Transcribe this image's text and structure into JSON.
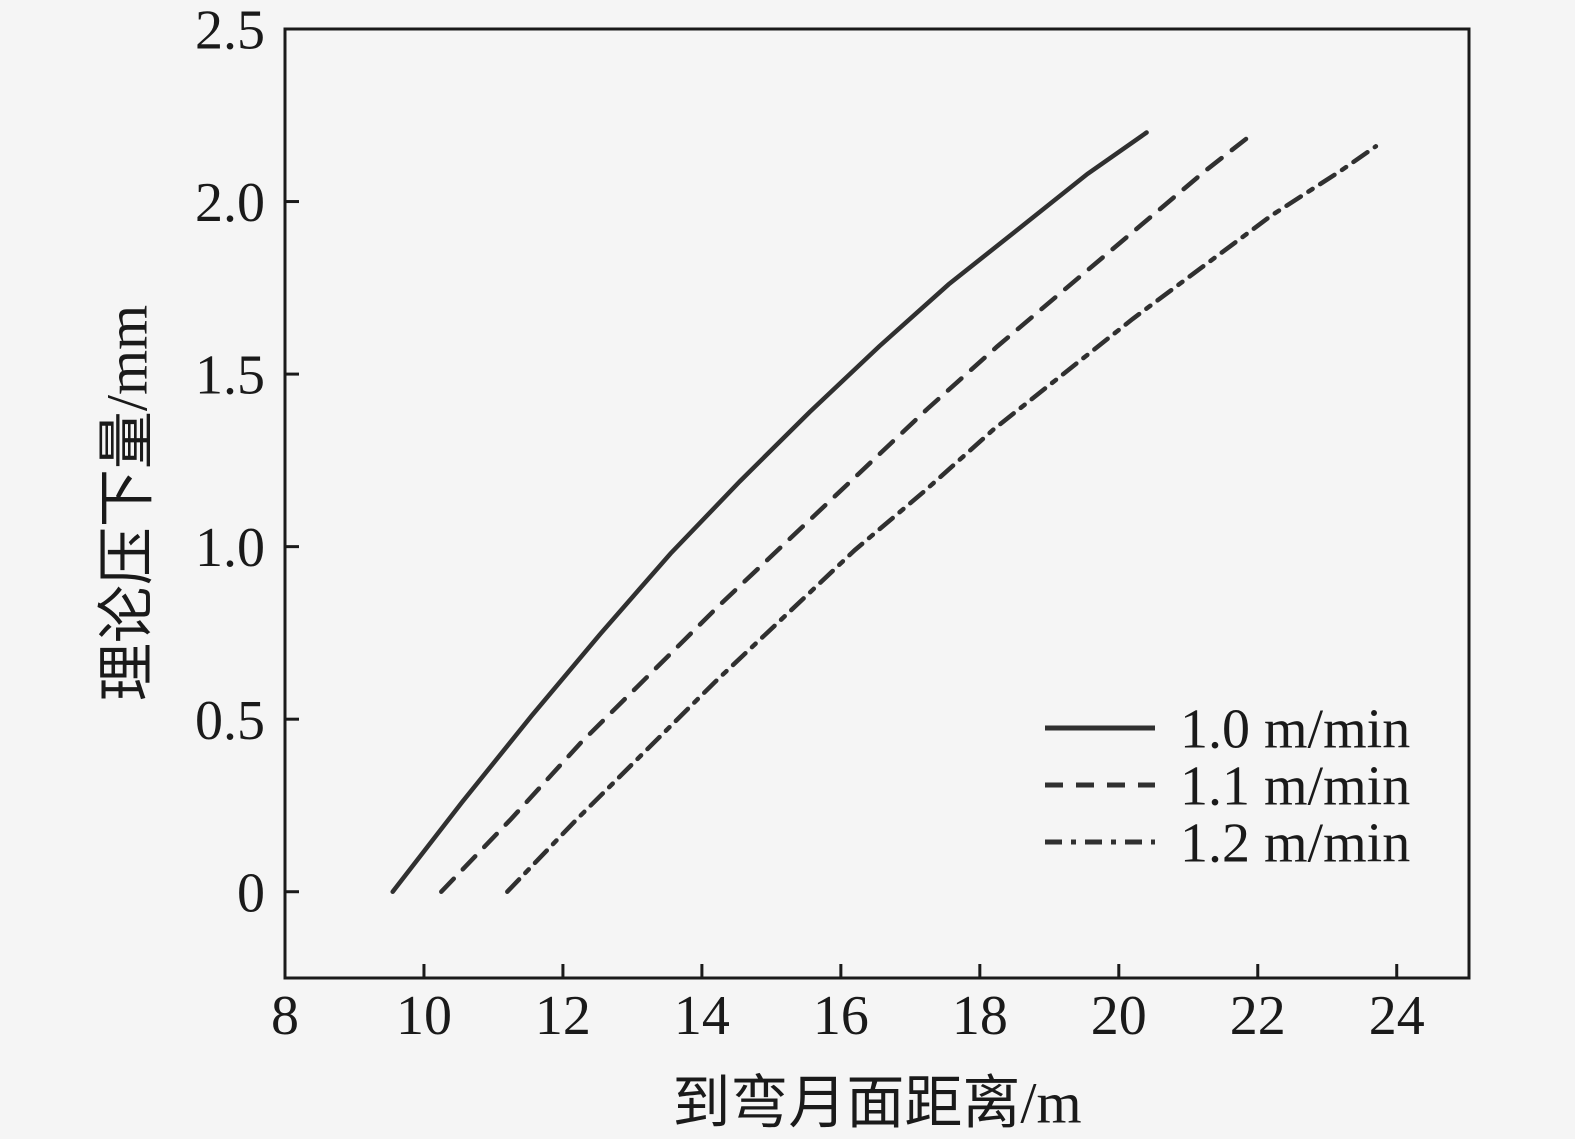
{
  "figure": {
    "colors": {
      "background": "#f5f5f5",
      "border": "#1a1a1a",
      "text": "#1a1a1a",
      "line": "#303030"
    }
  },
  "chart_data": {
    "type": "line",
    "title": "",
    "xlabel": "到弯月面距离/m",
    "ylabel": "理论压下量/mm",
    "xlim": [
      8,
      25.04
    ],
    "ylim": [
      -0.25,
      2.5
    ],
    "grid": false,
    "legend_position": "lower right",
    "xticks": [
      {
        "value": 8,
        "label": "8"
      },
      {
        "value": 10,
        "label": "10"
      },
      {
        "value": 12,
        "label": "12"
      },
      {
        "value": 14,
        "label": "14"
      },
      {
        "value": 16,
        "label": "16"
      },
      {
        "value": 18,
        "label": "18"
      },
      {
        "value": 20,
        "label": "20"
      },
      {
        "value": 22,
        "label": "22"
      },
      {
        "value": 24,
        "label": "24"
      }
    ],
    "yticks": [
      {
        "value": 0,
        "label": "0"
      },
      {
        "value": 0.5,
        "label": "0.5"
      },
      {
        "value": 1.0,
        "label": "1.0"
      },
      {
        "value": 1.5,
        "label": "1.5"
      },
      {
        "value": 2.0,
        "label": "2.0"
      },
      {
        "value": 2.5,
        "label": "2.5"
      }
    ],
    "series": [
      {
        "name": "1.0 m/min",
        "style": "solid",
        "points": [
          [
            9.55,
            0
          ],
          [
            10.55,
            0.26
          ],
          [
            11.55,
            0.51
          ],
          [
            12.55,
            0.75
          ],
          [
            13.55,
            0.98
          ],
          [
            14.55,
            1.19
          ],
          [
            15.55,
            1.39
          ],
          [
            16.55,
            1.58
          ],
          [
            17.55,
            1.76
          ],
          [
            18.55,
            1.92
          ],
          [
            19.55,
            2.08
          ],
          [
            20.4,
            2.2
          ]
        ]
      },
      {
        "name": "1.1 m/min",
        "style": "dashed",
        "points": [
          [
            10.25,
            0
          ],
          [
            11.25,
            0.21
          ],
          [
            12.25,
            0.43
          ],
          [
            13.25,
            0.63
          ],
          [
            14.25,
            0.83
          ],
          [
            15.25,
            1.02
          ],
          [
            16.25,
            1.21
          ],
          [
            17.25,
            1.4
          ],
          [
            18.25,
            1.58
          ],
          [
            19.25,
            1.75
          ],
          [
            20.25,
            1.92
          ],
          [
            21.25,
            2.09
          ],
          [
            21.95,
            2.2
          ]
        ]
      },
      {
        "name": "1.2 m/min",
        "style": "dashdot",
        "points": [
          [
            11.2,
            0
          ],
          [
            12.2,
            0.21
          ],
          [
            13.2,
            0.41
          ],
          [
            14.2,
            0.61
          ],
          [
            15.2,
            0.8
          ],
          [
            16.2,
            0.99
          ],
          [
            17.2,
            1.16
          ],
          [
            18.2,
            1.34
          ],
          [
            19.2,
            1.5
          ],
          [
            20.2,
            1.66
          ],
          [
            21.2,
            1.81
          ],
          [
            22.2,
            1.96
          ],
          [
            23.2,
            2.09
          ],
          [
            23.7,
            2.16
          ]
        ]
      }
    ]
  }
}
